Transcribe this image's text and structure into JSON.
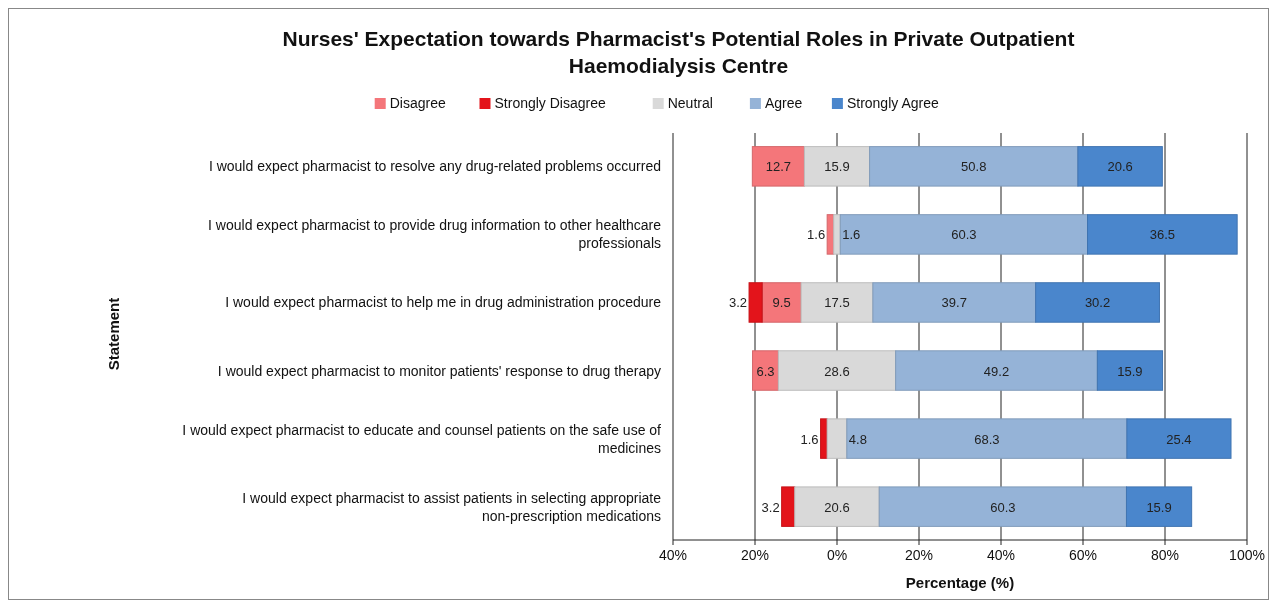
{
  "chart_data": {
    "type": "bar",
    "orientation": "horizontal",
    "title": "Nurses' Expectation towards Pharmacist's Potential Roles in Private Outpatient Haemodialysis Centre",
    "xlabel": "Percentage (%)",
    "ylabel": "Statement",
    "categories": [
      "I would expect pharmacist to resolve any drug-related problems occurred",
      "I would expect pharmacist to provide drug information to other healthcare professionals",
      "I would expect pharmacist to help me in drug administration procedure",
      "I would expect pharmacist to monitor patients' response to drug therapy",
      "I would expect pharmacist to educate and counsel patients on the safe use of medicines",
      "I would expect pharmacist to assist patients in selecting appropriate non-prescription medications"
    ],
    "series": [
      {
        "name": "Disagree",
        "color": "#f4767a",
        "values": [
          12.7,
          1.6,
          9.5,
          6.3,
          null,
          null
        ],
        "base": [
          -20.65,
          -2.4,
          -18.25,
          -20.6,
          null,
          null
        ]
      },
      {
        "name": "Strongly Disagree",
        "color": "#e3141b",
        "values": [
          null,
          null,
          3.2,
          null,
          1.6,
          3.2
        ],
        "base": [
          null,
          null,
          -21.45,
          null,
          -4.0,
          -13.5
        ]
      },
      {
        "name": "Neutral",
        "color": "#d9d9d9",
        "values": [
          15.9,
          1.6,
          17.5,
          28.6,
          4.8,
          20.6
        ],
        "base": [
          -7.95,
          -0.8,
          -8.75,
          -14.3,
          -2.4,
          -10.3
        ]
      },
      {
        "name": "Agree",
        "color": "#95b3d7",
        "values": [
          50.8,
          60.3,
          39.7,
          49.2,
          68.3,
          60.3
        ],
        "base": [
          7.95,
          0.8,
          8.75,
          14.3,
          2.4,
          10.3
        ]
      },
      {
        "name": "Strongly Agree",
        "color": "#4a86cc",
        "values": [
          20.6,
          36.5,
          30.2,
          15.9,
          25.4,
          15.9
        ],
        "base": [
          58.75,
          61.1,
          48.45,
          63.5,
          70.7,
          70.6
        ]
      }
    ],
    "xlim": [
      -40,
      100
    ],
    "xticks": [
      {
        "value": -40,
        "label": "40%"
      },
      {
        "value": -20,
        "label": "20%"
      },
      {
        "value": 0,
        "label": "0%"
      },
      {
        "value": 20,
        "label": "20%"
      },
      {
        "value": 40,
        "label": "40%"
      },
      {
        "value": 60,
        "label": "60%"
      },
      {
        "value": 80,
        "label": "80%"
      },
      {
        "value": 100,
        "label": "100%"
      }
    ],
    "grid": "x",
    "legend": "top",
    "data_labels": true
  }
}
